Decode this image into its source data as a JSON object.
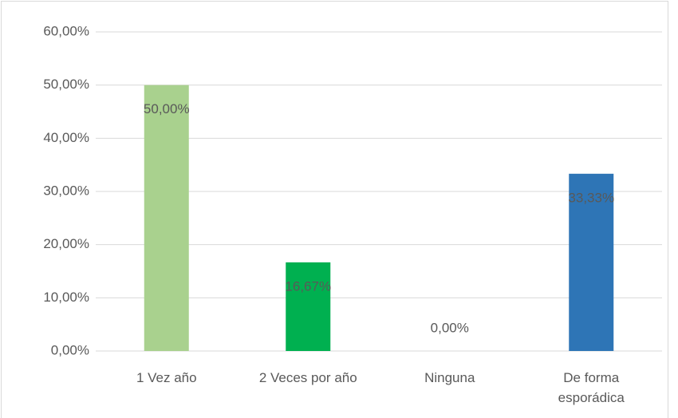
{
  "chart_data": {
    "type": "bar",
    "categories": [
      "1 Vez año",
      "2 Veces por año",
      "Ninguna",
      "De forma esporádica"
    ],
    "values": [
      50,
      16.67,
      0,
      33.33
    ],
    "value_labels": [
      "50,00%",
      "16,67%",
      "0,00%",
      "33,33%"
    ],
    "colors": [
      "#a9d18e",
      "#00b050",
      "#4472c4",
      "#2e75b6"
    ],
    "ylim": [
      0,
      60
    ],
    "yticks": [
      {
        "value": 0,
        "label": "0,00%"
      },
      {
        "value": 10,
        "label": "10,00%"
      },
      {
        "value": 20,
        "label": "20,00%"
      },
      {
        "value": 30,
        "label": "30,00%"
      },
      {
        "value": 40,
        "label": "40,00%"
      },
      {
        "value": 50,
        "label": "50,00%"
      },
      {
        "value": 60,
        "label": "60,00%"
      }
    ],
    "grid": true
  }
}
